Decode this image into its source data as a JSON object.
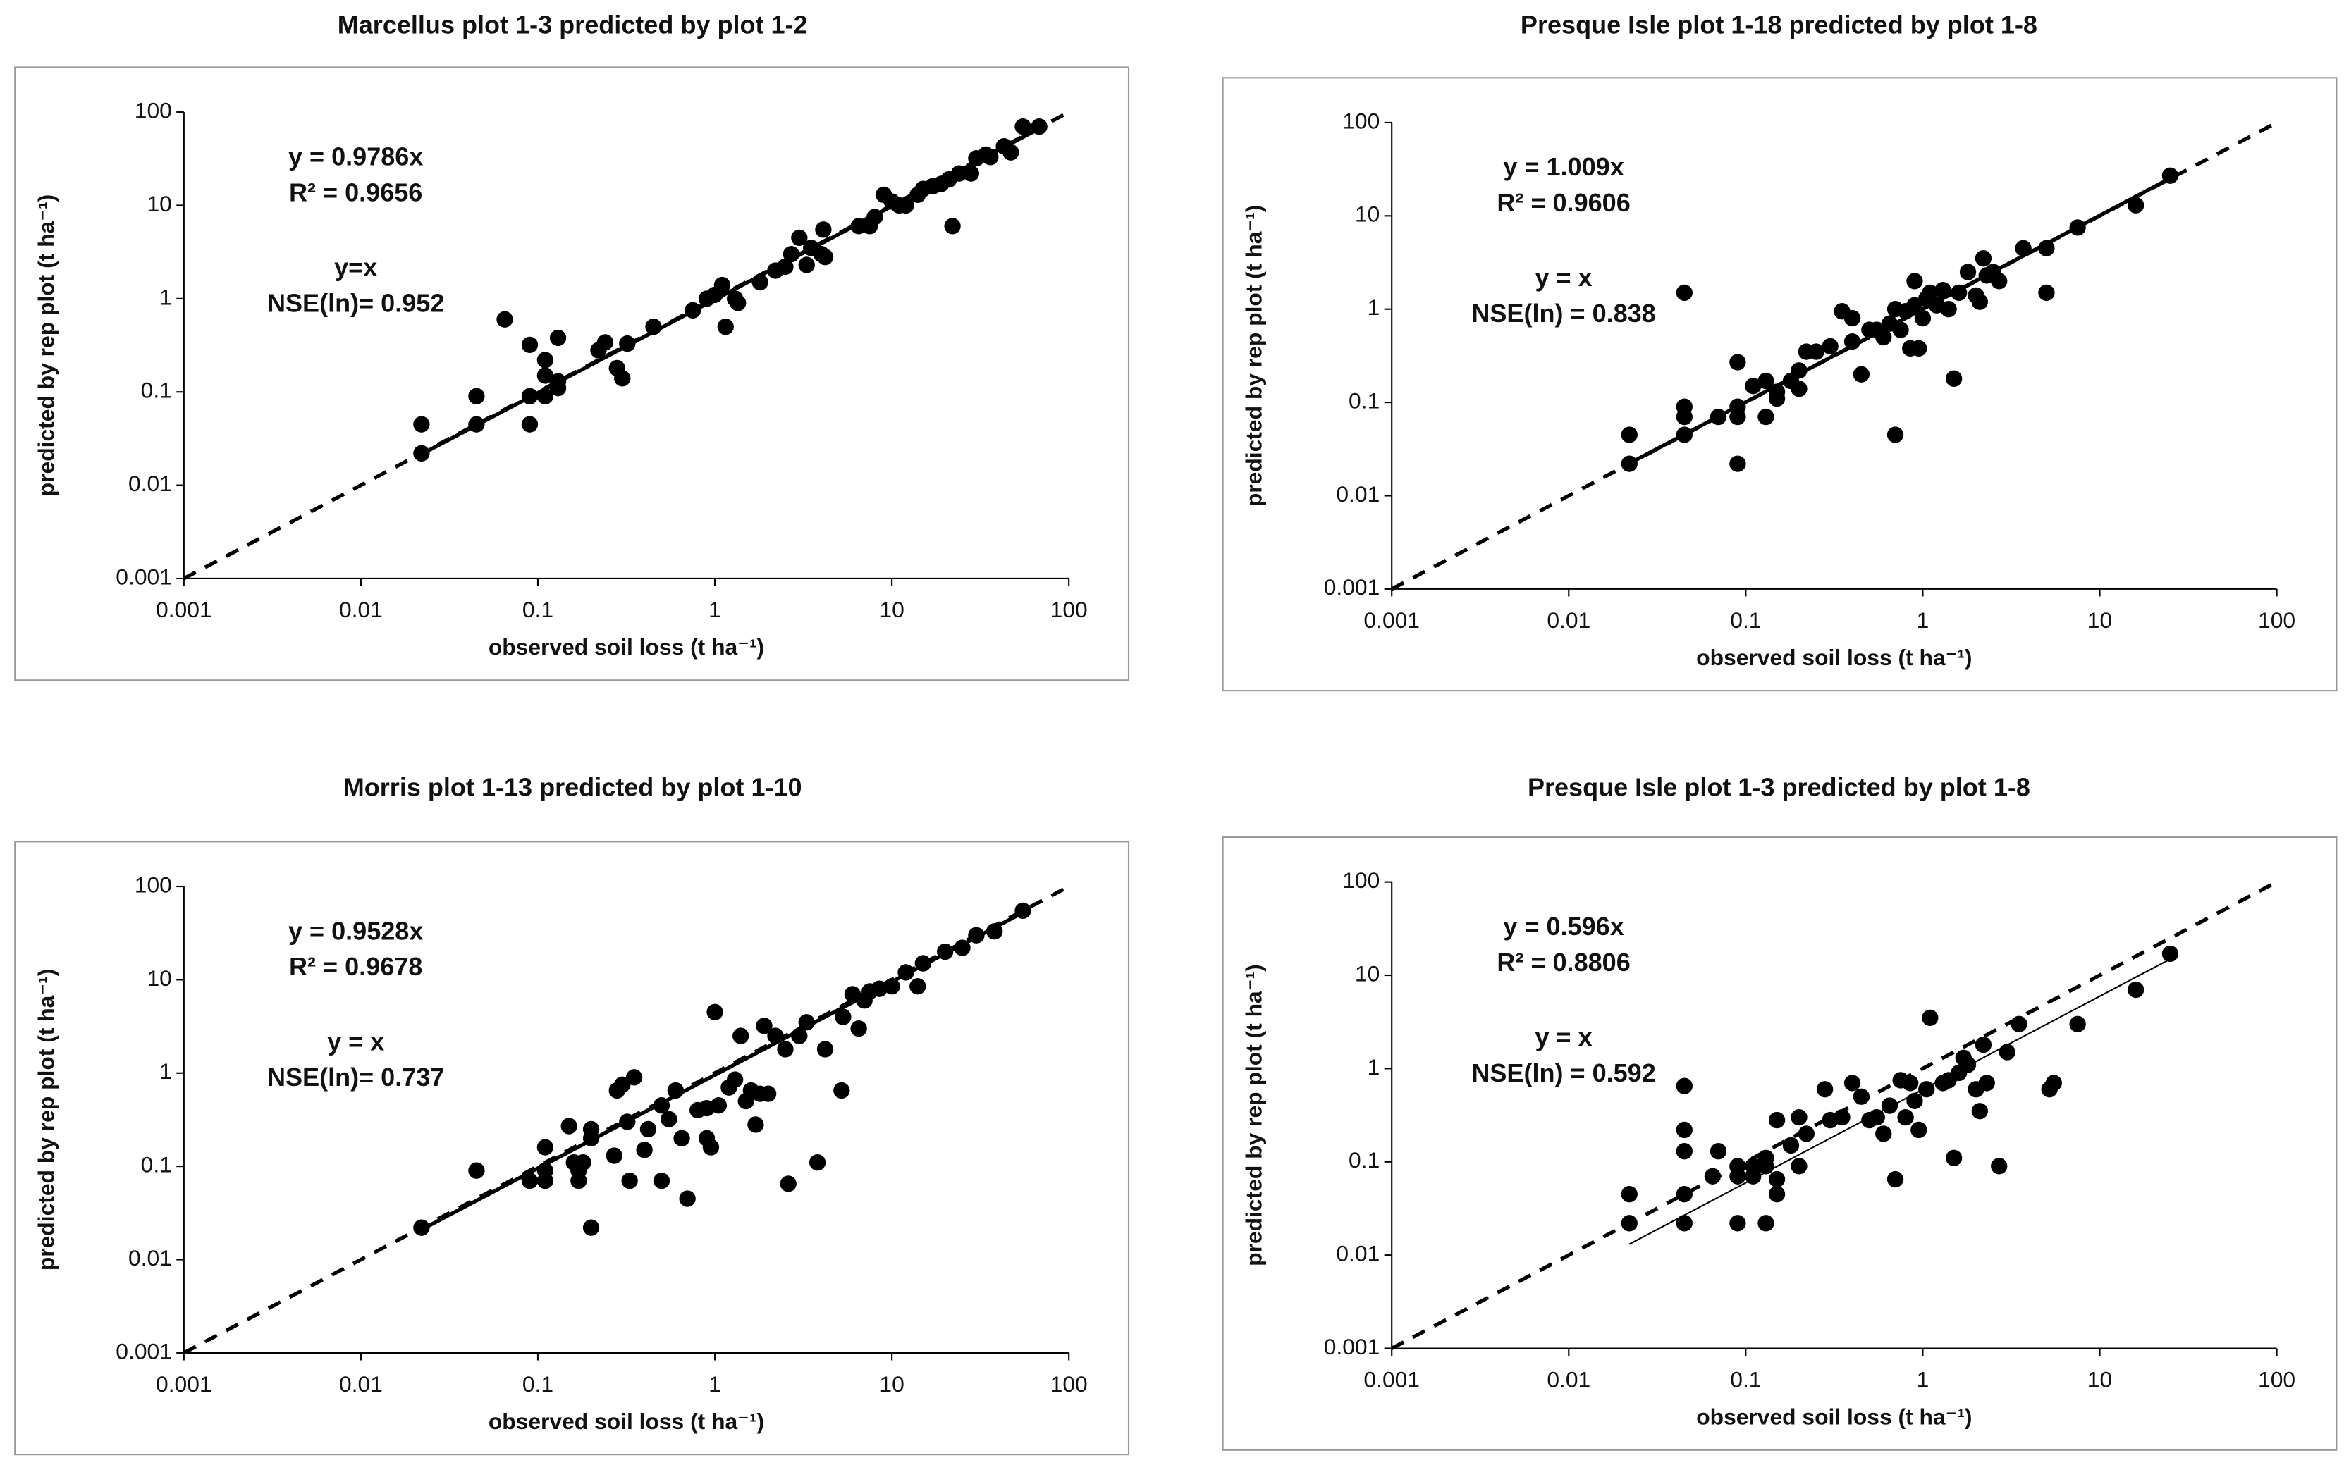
{
  "chart_data": [
    {
      "type": "scatter",
      "title": "Marcellus  plot 1-3 predicted by plot 1-2",
      "xlabel": "observed soil loss  (t ha⁻¹)",
      "ylabel": "predicted by rep plot (t ha⁻¹)",
      "annotations": [
        "y = 0.9786x",
        "R² = 0.9656",
        "y=x",
        "NSE(ln)= 0.952"
      ],
      "fit_slope": 0.9786,
      "log_x": true,
      "log_y": true,
      "color": "#000000",
      "grid": false,
      "xlim": [
        0.001,
        100
      ],
      "ylim": [
        0.001,
        100
      ],
      "xticks": [
        0.001,
        0.01,
        0.1,
        1,
        10,
        100
      ],
      "yticks": [
        0.001,
        0.01,
        0.1,
        1,
        10,
        100
      ],
      "x": [
        0.022,
        0.022,
        0.045,
        0.045,
        0.065,
        0.09,
        0.09,
        0.09,
        0.11,
        0.11,
        0.11,
        0.13,
        0.13,
        0.13,
        0.22,
        0.24,
        0.28,
        0.3,
        0.32,
        0.45,
        0.75,
        0.9,
        1.0,
        1.1,
        1.15,
        1.3,
        1.35,
        1.8,
        2.2,
        2.5,
        2.7,
        3.0,
        3.3,
        3.5,
        4.0,
        4.1,
        4.2,
        6.5,
        7.5,
        8.0,
        9.0,
        10,
        11,
        12,
        14,
        15,
        17,
        19,
        21,
        22,
        24,
        28,
        30,
        34,
        36,
        43,
        47,
        55,
        68
      ],
      "values": [
        0.045,
        0.022,
        0.09,
        0.045,
        0.6,
        0.32,
        0.09,
        0.045,
        0.22,
        0.15,
        0.09,
        0.38,
        0.13,
        0.11,
        0.28,
        0.34,
        0.18,
        0.14,
        0.33,
        0.5,
        0.75,
        1.0,
        1.1,
        1.4,
        0.5,
        1.0,
        0.9,
        1.5,
        2.0,
        2.2,
        3.0,
        4.5,
        2.3,
        3.5,
        3.0,
        5.5,
        2.8,
        6.0,
        6.0,
        7.5,
        13,
        11,
        10,
        10,
        13,
        15,
        16,
        17,
        19,
        6,
        22,
        22,
        32,
        35,
        33,
        43,
        37,
        70,
        70
      ]
    },
    {
      "type": "scatter",
      "title": "Presque Isle plot 1-18 predicted by plot 1-8",
      "xlabel": "observed soil loss  (t ha⁻¹)",
      "ylabel": "predicted by rep plot (t ha⁻¹)",
      "annotations": [
        "y = 1.009x",
        "R² = 0.9606",
        "y = x",
        "NSE(ln) = 0.838"
      ],
      "fit_slope": 1.009,
      "log_x": true,
      "log_y": true,
      "color": "#000000",
      "grid": false,
      "xlim": [
        0.001,
        100
      ],
      "ylim": [
        0.001,
        100
      ],
      "xticks": [
        0.001,
        0.01,
        0.1,
        1,
        10,
        100
      ],
      "yticks": [
        0.001,
        0.01,
        0.1,
        1,
        10,
        100
      ],
      "x": [
        0.022,
        0.022,
        0.045,
        0.045,
        0.045,
        0.045,
        0.07,
        0.09,
        0.09,
        0.09,
        0.09,
        0.11,
        0.13,
        0.13,
        0.15,
        0.15,
        0.18,
        0.2,
        0.2,
        0.22,
        0.25,
        0.3,
        0.35,
        0.4,
        0.4,
        0.45,
        0.5,
        0.55,
        0.6,
        0.65,
        0.7,
        0.7,
        0.75,
        0.8,
        0.85,
        0.9,
        0.9,
        0.95,
        1.0,
        1.05,
        1.1,
        1.2,
        1.3,
        1.4,
        1.5,
        1.6,
        1.8,
        2.0,
        2.1,
        2.2,
        2.3,
        2.5,
        2.7,
        3.7,
        5,
        5,
        7.5,
        16,
        25
      ],
      "values": [
        0.045,
        0.022,
        1.5,
        0.09,
        0.07,
        0.045,
        0.07,
        0.27,
        0.09,
        0.07,
        0.022,
        0.15,
        0.17,
        0.07,
        0.13,
        0.11,
        0.17,
        0.22,
        0.14,
        0.35,
        0.35,
        0.4,
        0.95,
        0.8,
        0.45,
        0.2,
        0.6,
        0.6,
        0.5,
        0.7,
        0.045,
        1.0,
        0.6,
        0.95,
        0.38,
        2.0,
        1.1,
        0.38,
        0.8,
        1.3,
        1.5,
        1.1,
        1.6,
        1.0,
        0.18,
        1.5,
        2.5,
        1.4,
        1.2,
        3.5,
        2.3,
        2.5,
        2.0,
        4.5,
        4.5,
        1.5,
        7.5,
        13,
        27
      ]
    },
    {
      "type": "scatter",
      "title": "Morris plot 1-13 predicted by plot 1-10",
      "xlabel": "observed soil loss  (t ha⁻¹)",
      "ylabel": "predicted by rep plot (t ha⁻¹)",
      "annotations": [
        "y = 0.9528x",
        "R² = 0.9678",
        "y = x",
        "NSE(ln)= 0.737"
      ],
      "fit_slope": 0.9528,
      "log_x": true,
      "log_y": true,
      "color": "#000000",
      "grid": false,
      "xlim": [
        0.001,
        100
      ],
      "ylim": [
        0.001,
        100
      ],
      "xticks": [
        0.001,
        0.01,
        0.1,
        1,
        10,
        100
      ],
      "yticks": [
        0.001,
        0.01,
        0.1,
        1,
        10,
        100
      ],
      "x": [
        0.022,
        0.045,
        0.09,
        0.11,
        0.11,
        0.11,
        0.15,
        0.16,
        0.17,
        0.17,
        0.18,
        0.2,
        0.2,
        0.2,
        0.27,
        0.28,
        0.3,
        0.32,
        0.33,
        0.35,
        0.4,
        0.42,
        0.5,
        0.5,
        0.55,
        0.6,
        0.65,
        0.7,
        0.8,
        0.9,
        0.9,
        0.95,
        1.0,
        1.05,
        1.2,
        1.3,
        1.4,
        1.5,
        1.6,
        1.7,
        1.8,
        1.9,
        2.0,
        2.2,
        2.5,
        2.6,
        3.0,
        3.3,
        3.8,
        4.2,
        5.2,
        5.3,
        6,
        6.5,
        7,
        7.5,
        8.5,
        10,
        12,
        14,
        15,
        20,
        25,
        30,
        38,
        55
      ],
      "values": [
        0.022,
        0.09,
        0.07,
        0.16,
        0.09,
        0.07,
        0.27,
        0.11,
        0.09,
        0.07,
        0.11,
        0.25,
        0.2,
        0.022,
        0.13,
        0.65,
        0.75,
        0.3,
        0.07,
        0.9,
        0.15,
        0.25,
        0.07,
        0.45,
        0.32,
        0.65,
        0.2,
        0.045,
        0.4,
        0.2,
        0.42,
        0.16,
        4.5,
        0.45,
        0.7,
        0.85,
        2.5,
        0.5,
        0.65,
        0.28,
        0.6,
        3.2,
        0.6,
        2.5,
        1.8,
        0.065,
        2.5,
        3.5,
        0.11,
        1.8,
        0.65,
        4.0,
        7,
        3.0,
        6,
        7.5,
        8,
        8.5,
        12,
        8.5,
        15,
        20,
        22,
        30,
        33,
        55
      ]
    },
    {
      "type": "scatter",
      "title": "Presque Isle plot 1-3 predicted by plot 1-8",
      "xlabel": "observed soil loss  (t ha⁻¹)",
      "ylabel": "predicted by rep plot (t ha⁻¹)",
      "annotations": [
        "y = 0.596x",
        "R² = 0.8806",
        "y = x",
        "NSE(ln) = 0.592"
      ],
      "fit_slope": 0.596,
      "log_x": true,
      "log_y": true,
      "color": "#000000",
      "grid": false,
      "xlim": [
        0.001,
        100
      ],
      "ylim": [
        0.001,
        100
      ],
      "xticks": [
        0.001,
        0.01,
        0.1,
        1,
        10,
        100
      ],
      "yticks": [
        0.001,
        0.01,
        0.1,
        1,
        10,
        100
      ],
      "x": [
        0.022,
        0.022,
        0.045,
        0.045,
        0.045,
        0.045,
        0.045,
        0.065,
        0.07,
        0.09,
        0.09,
        0.09,
        0.11,
        0.11,
        0.13,
        0.13,
        0.13,
        0.15,
        0.15,
        0.15,
        0.18,
        0.2,
        0.2,
        0.22,
        0.28,
        0.3,
        0.35,
        0.4,
        0.45,
        0.5,
        0.55,
        0.6,
        0.65,
        0.7,
        0.75,
        0.8,
        0.85,
        0.9,
        0.95,
        1.05,
        1.1,
        1.3,
        1.4,
        1.5,
        1.6,
        1.7,
        1.8,
        2.0,
        2.1,
        2.2,
        2.3,
        2.7,
        3.0,
        3.5,
        5.2,
        5.5,
        7.5,
        16,
        25
      ],
      "values": [
        0.045,
        0.022,
        0.65,
        0.22,
        0.13,
        0.045,
        0.022,
        0.07,
        0.13,
        0.09,
        0.07,
        0.022,
        0.09,
        0.07,
        0.11,
        0.09,
        0.022,
        0.28,
        0.045,
        0.065,
        0.15,
        0.3,
        0.09,
        0.2,
        0.6,
        0.28,
        0.3,
        0.7,
        0.5,
        0.28,
        0.3,
        0.2,
        0.4,
        0.065,
        0.75,
        0.3,
        0.7,
        0.45,
        0.22,
        0.6,
        3.5,
        0.7,
        0.75,
        0.11,
        0.9,
        1.3,
        1.1,
        0.6,
        0.35,
        1.8,
        0.7,
        0.09,
        1.5,
        3.0,
        0.6,
        0.7,
        3.0,
        7,
        17
      ]
    }
  ]
}
